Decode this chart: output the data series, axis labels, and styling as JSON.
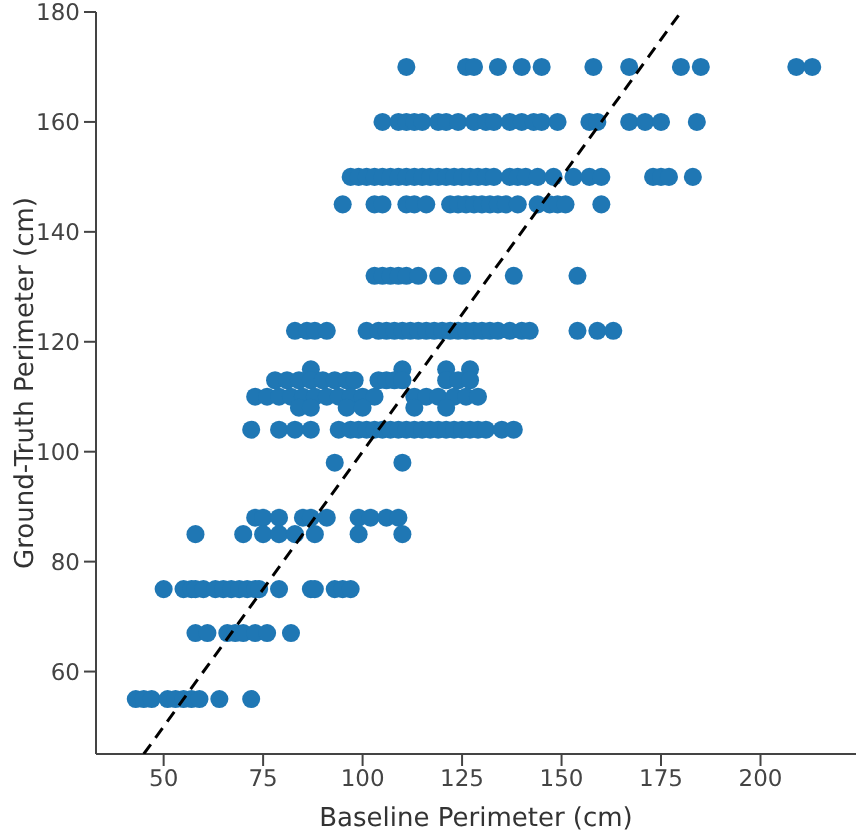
{
  "chart_data": {
    "type": "scatter",
    "xlabel": "Baseline Perimeter (cm)",
    "ylabel": "Ground-Truth Perimeter (cm)",
    "xlim": [
      33,
      224
    ],
    "ylim": [
      45,
      180
    ],
    "xticks": [
      50,
      75,
      100,
      125,
      150,
      175,
      200
    ],
    "yticks": [
      60,
      80,
      100,
      120,
      140,
      160,
      180
    ],
    "grid": false,
    "marker": "circle",
    "series": [
      {
        "type": "scatter",
        "color": "#1f77b4",
        "x": [
          111,
          126,
          128,
          134,
          140,
          145,
          158,
          167,
          180,
          185,
          209,
          213,
          105,
          109,
          111,
          113,
          115,
          119,
          121,
          124,
          128,
          131,
          133,
          137,
          140,
          143,
          145,
          149,
          157,
          159,
          167,
          171,
          175,
          184,
          97,
          99,
          101,
          103,
          105,
          107,
          109,
          111,
          113,
          115,
          117,
          119,
          121,
          123,
          125,
          127,
          129,
          131,
          133,
          137,
          139,
          141,
          144,
          148,
          153,
          157,
          160,
          173,
          175,
          177,
          183,
          95,
          103,
          105,
          111,
          113,
          116,
          122,
          124,
          126,
          128,
          130,
          132,
          134,
          136,
          139,
          144,
          147,
          149,
          151,
          160,
          103,
          105,
          107,
          109,
          111,
          114,
          119,
          125,
          138,
          154,
          83,
          86,
          88,
          91,
          101,
          104,
          106,
          108,
          110,
          112,
          114,
          116,
          118,
          120,
          122,
          124,
          126,
          128,
          130,
          132,
          134,
          137,
          140,
          142,
          154,
          159,
          163,
          87,
          110,
          121,
          127,
          78,
          81,
          84,
          87,
          90,
          93,
          96,
          98,
          104,
          106,
          108,
          110,
          121,
          124,
          127,
          73,
          76,
          79,
          82,
          85,
          88,
          91,
          94,
          97,
          100,
          103,
          113,
          116,
          119,
          123,
          126,
          129,
          84,
          87,
          96,
          100,
          113,
          121,
          72,
          79,
          83,
          87,
          94,
          97,
          99,
          101,
          103,
          105,
          107,
          109,
          111,
          113,
          115,
          117,
          119,
          121,
          123,
          125,
          127,
          129,
          131,
          135,
          138,
          93,
          110,
          73,
          75,
          79,
          85,
          87,
          91,
          99,
          102,
          106,
          109,
          58,
          70,
          75,
          79,
          83,
          88,
          99,
          110,
          50,
          55,
          57,
          58,
          60,
          63,
          65,
          67,
          69,
          71,
          73,
          74,
          79,
          87,
          88,
          93,
          95,
          97,
          58,
          61,
          66,
          68,
          70,
          73,
          76,
          82,
          43,
          45,
          47,
          51,
          53,
          55,
          57,
          59,
          64,
          72
        ],
        "values": [
          170,
          170,
          170,
          170,
          170,
          170,
          170,
          170,
          170,
          170,
          170,
          170,
          160,
          160,
          160,
          160,
          160,
          160,
          160,
          160,
          160,
          160,
          160,
          160,
          160,
          160,
          160,
          160,
          160,
          160,
          160,
          160,
          160,
          160,
          150,
          150,
          150,
          150,
          150,
          150,
          150,
          150,
          150,
          150,
          150,
          150,
          150,
          150,
          150,
          150,
          150,
          150,
          150,
          150,
          150,
          150,
          150,
          150,
          150,
          150,
          150,
          150,
          150,
          150,
          150,
          145,
          145,
          145,
          145,
          145,
          145,
          145,
          145,
          145,
          145,
          145,
          145,
          145,
          145,
          145,
          145,
          145,
          145,
          145,
          145,
          132,
          132,
          132,
          132,
          132,
          132,
          132,
          132,
          132,
          132,
          122,
          122,
          122,
          122,
          122,
          122,
          122,
          122,
          122,
          122,
          122,
          122,
          122,
          122,
          122,
          122,
          122,
          122,
          122,
          122,
          122,
          122,
          122,
          122,
          122,
          122,
          122,
          115,
          115,
          115,
          115,
          113,
          113,
          113,
          113,
          113,
          113,
          113,
          113,
          113,
          113,
          113,
          113,
          113,
          113,
          113,
          110,
          110,
          110,
          110,
          110,
          110,
          110,
          110,
          110,
          110,
          110,
          110,
          110,
          110,
          110,
          110,
          110,
          108,
          108,
          108,
          108,
          108,
          108,
          104,
          104,
          104,
          104,
          104,
          104,
          104,
          104,
          104,
          104,
          104,
          104,
          104,
          104,
          104,
          104,
          104,
          104,
          104,
          104,
          104,
          104,
          104,
          104,
          104,
          98,
          98,
          88,
          88,
          88,
          88,
          88,
          88,
          88,
          88,
          88,
          88,
          85,
          85,
          85,
          85,
          85,
          85,
          85,
          85,
          75,
          75,
          75,
          75,
          75,
          75,
          75,
          75,
          75,
          75,
          75,
          75,
          75,
          75,
          75,
          75,
          75,
          75,
          67,
          67,
          67,
          67,
          67,
          67,
          67,
          67,
          55,
          55,
          55,
          55,
          55,
          55,
          55,
          55,
          55,
          55
        ]
      },
      {
        "type": "line",
        "color": "#000000",
        "line_style": "dashed",
        "marker": "none",
        "x": [
          45,
          180
        ],
        "values": [
          45,
          180
        ]
      }
    ]
  }
}
